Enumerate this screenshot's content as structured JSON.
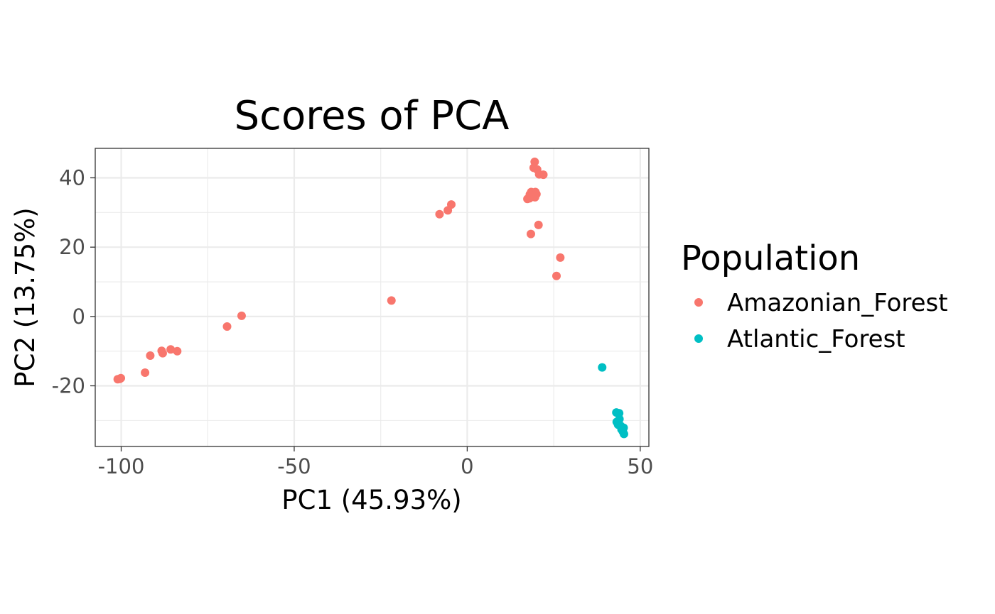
{
  "chart_data": {
    "type": "scatter",
    "title": "Scores of PCA",
    "xlabel": "PC1 (45.93%)",
    "ylabel": "PC2 (13.75%)",
    "xlim": [
      -107.5,
      52.5
    ],
    "ylim": [
      -37.5,
      48.5
    ],
    "xticks": [
      -100,
      -50,
      0,
      50
    ],
    "xtick_labels": [
      "-100",
      "-50",
      "0",
      "50"
    ],
    "yticks": [
      -20,
      0,
      20,
      40
    ],
    "ytick_labels": [
      "-20",
      "0",
      "20",
      "40"
    ],
    "grid": true,
    "legend": {
      "title": "Population",
      "position": "right"
    },
    "series": [
      {
        "name": "Amazonian_Forest",
        "color": "#F8766D",
        "points": [
          [
            19.5,
            44.6
          ],
          [
            19.2,
            42.9
          ],
          [
            20.2,
            42.4
          ],
          [
            20.8,
            41.0
          ],
          [
            22.0,
            40.9
          ],
          [
            18.5,
            35.9
          ],
          [
            19.7,
            35.9
          ],
          [
            18.1,
            35.2
          ],
          [
            20.0,
            35.3
          ],
          [
            17.4,
            33.9
          ],
          [
            19.6,
            34.4
          ],
          [
            18.0,
            34.1
          ],
          [
            -4.6,
            32.3
          ],
          [
            -5.6,
            30.6
          ],
          [
            -8.0,
            29.5
          ],
          [
            20.6,
            26.4
          ],
          [
            18.4,
            23.8
          ],
          [
            26.9,
            17.0
          ],
          [
            25.8,
            11.7
          ],
          [
            -21.9,
            4.6
          ],
          [
            -65.2,
            0.2
          ],
          [
            -69.4,
            -2.9
          ],
          [
            -85.7,
            -9.5
          ],
          [
            -83.8,
            -10.0
          ],
          [
            -88.3,
            -9.9
          ],
          [
            -88.0,
            -10.6
          ],
          [
            -91.6,
            -11.3
          ],
          [
            -93.1,
            -16.2
          ],
          [
            -100.4,
            -18.0
          ],
          [
            -101.0,
            -18.1
          ],
          [
            -100.1,
            -17.8
          ]
        ]
      },
      {
        "name": "Atlantic_Forest",
        "color": "#00BFC4",
        "points": [
          [
            39.0,
            -14.7
          ],
          [
            43.1,
            -27.7
          ],
          [
            43.9,
            -27.9
          ],
          [
            44.0,
            -29.6
          ],
          [
            43.2,
            -30.4
          ],
          [
            43.6,
            -31.2
          ],
          [
            44.3,
            -31.5
          ],
          [
            45.2,
            -32.1
          ],
          [
            44.6,
            -32.6
          ],
          [
            45.0,
            -33.2
          ],
          [
            45.3,
            -33.9
          ],
          [
            43.7,
            -30.9
          ]
        ]
      }
    ]
  }
}
